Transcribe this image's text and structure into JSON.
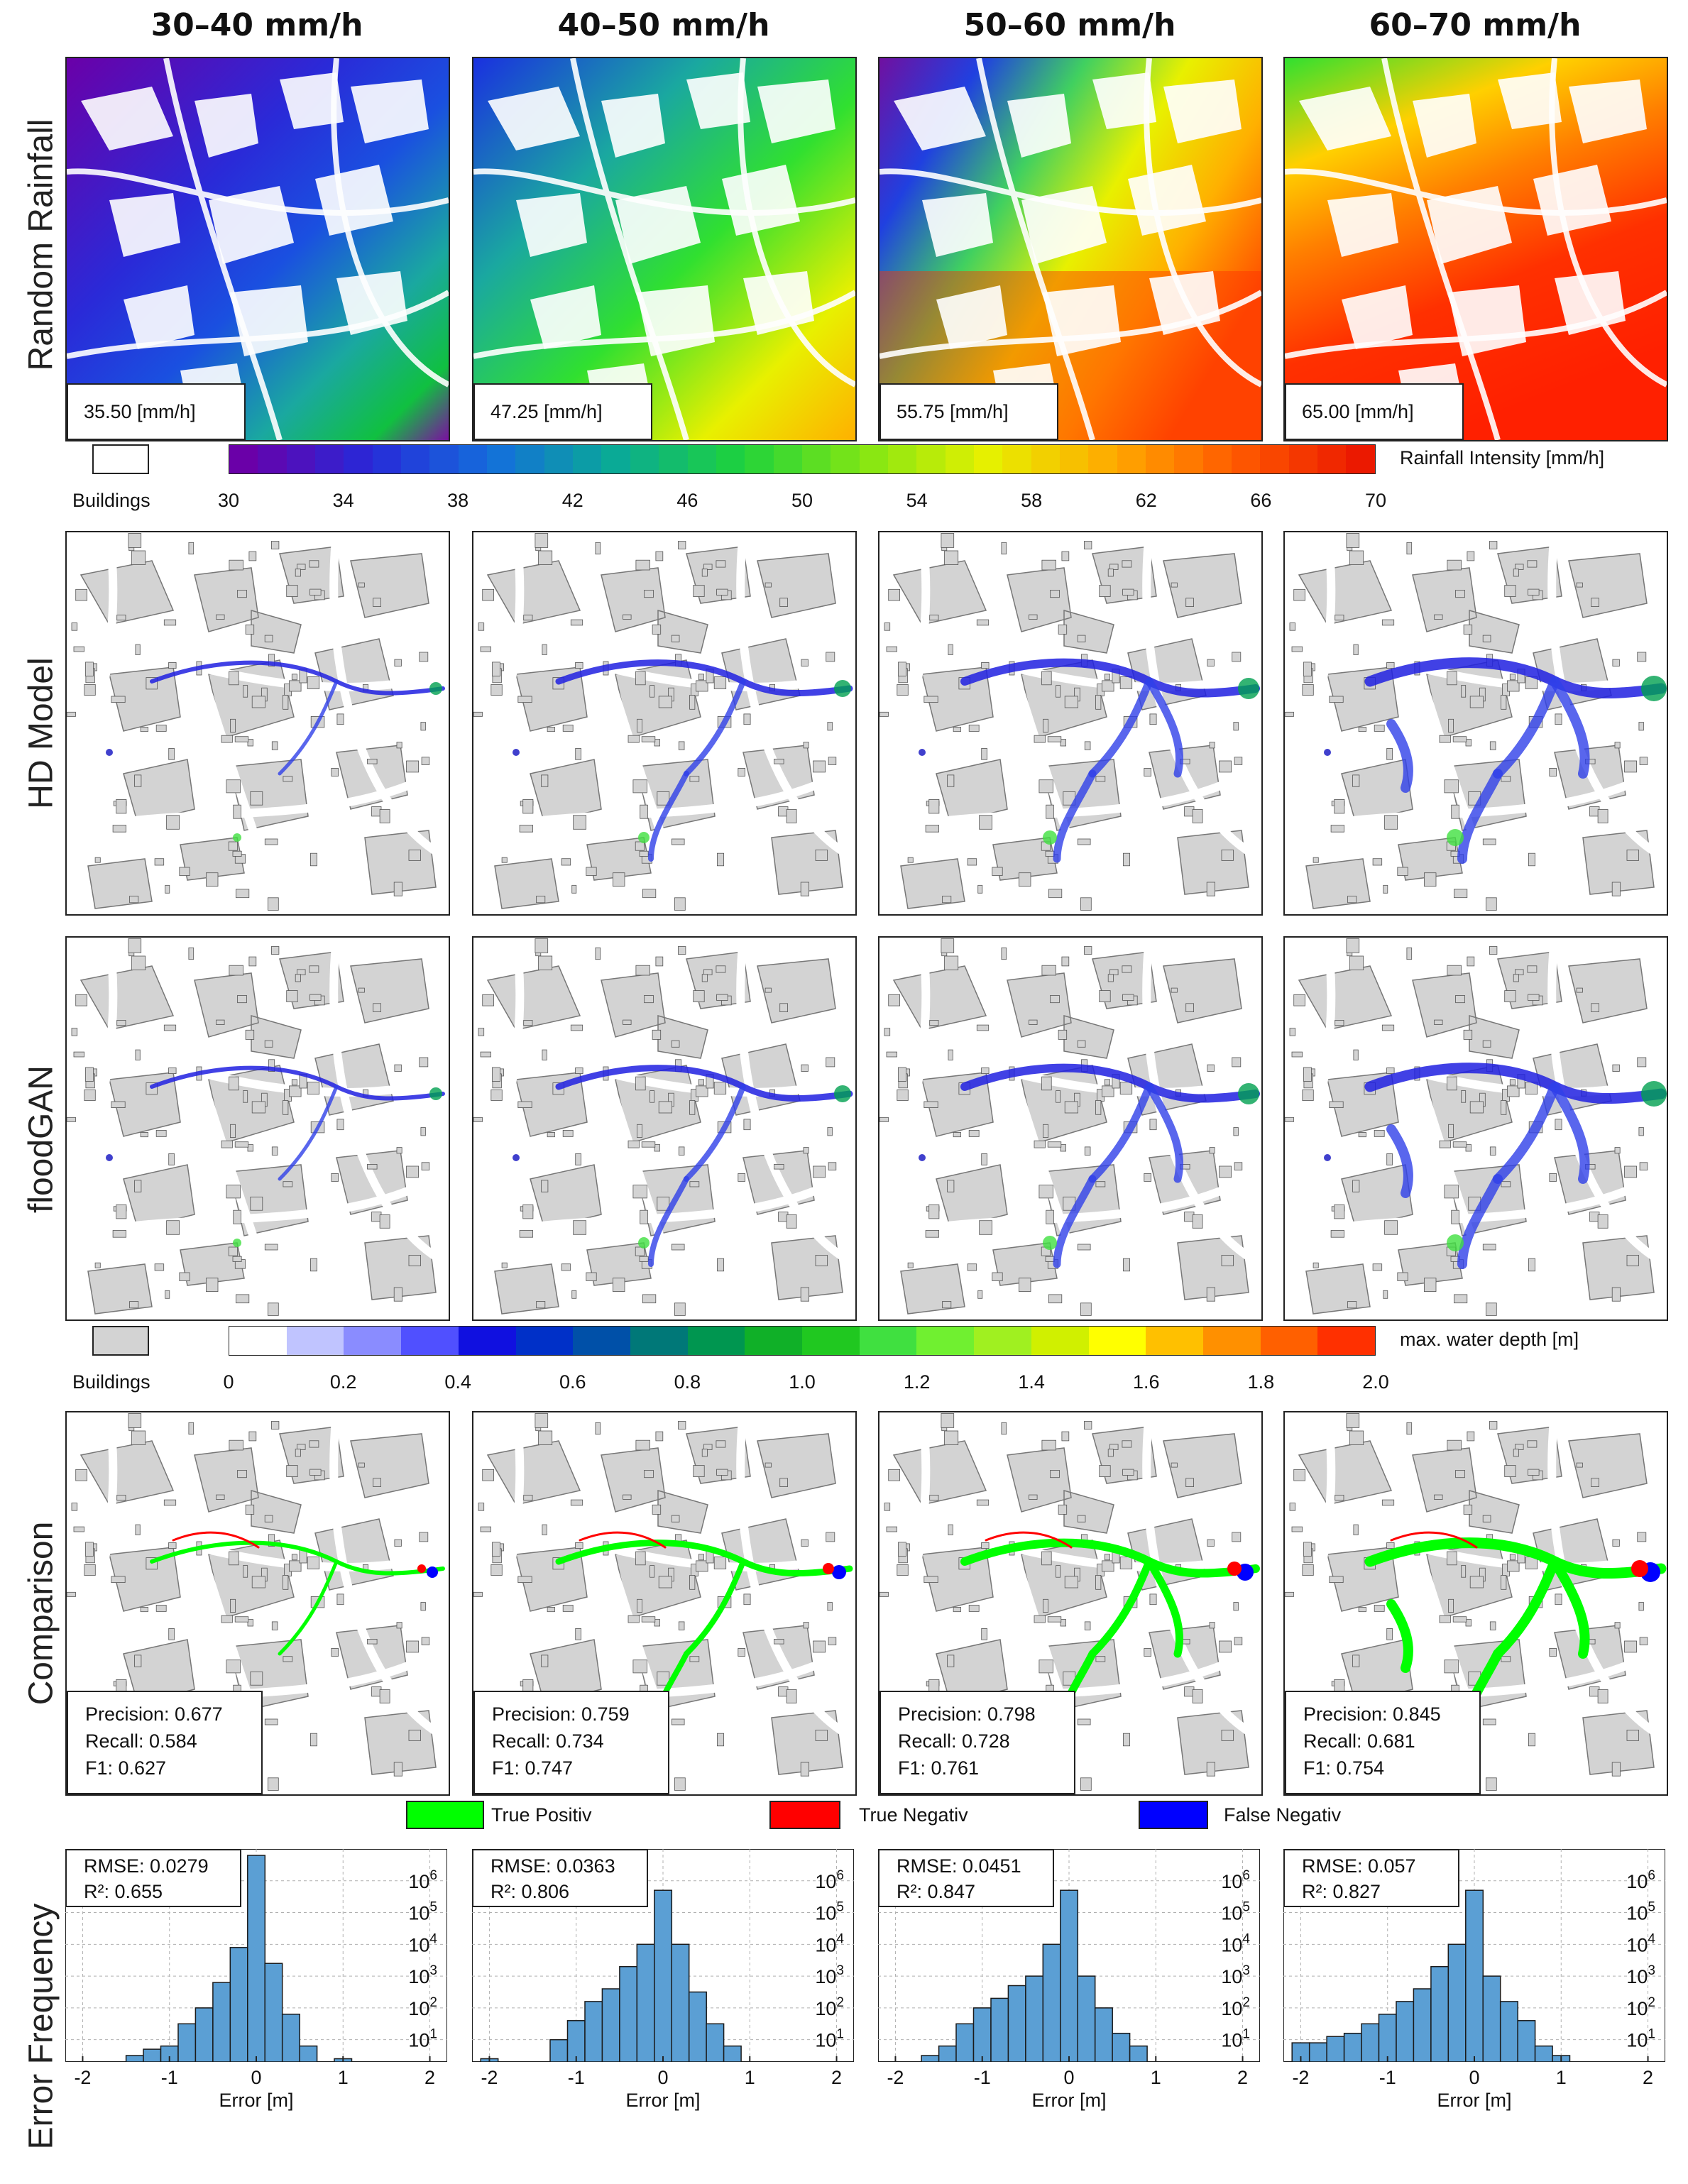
{
  "columns": [
    {
      "title": "30–40 mm/h",
      "rainfall_value": "35.50 [mm/h]",
      "precision": "Precision: 0.677",
      "recall": "Recall: 0.584",
      "f1": "F1: 0.627",
      "rmse": "RMSE: 0.0279",
      "r2": "R²: 0.655"
    },
    {
      "title": "40–50 mm/h",
      "rainfall_value": "47.25 [mm/h]",
      "precision": "Precision: 0.759",
      "recall": "Recall: 0.734",
      "f1": "F1: 0.747",
      "rmse": "RMSE: 0.0363",
      "r2": "R²: 0.806"
    },
    {
      "title": "50–60 mm/h",
      "rainfall_value": "55.75 [mm/h]",
      "precision": "Precision: 0.798",
      "recall": "Recall: 0.728",
      "f1": "F1: 0.761",
      "rmse": "RMSE: 0.0451",
      "r2": "R²: 0.847"
    },
    {
      "title": "60–70 mm/h",
      "rainfall_value": "65.00 [mm/h]",
      "precision": "Precision: 0.845",
      "recall": "Recall: 0.681",
      "f1": "F1: 0.754",
      "rmse": "RMSE: 0.057",
      "r2": "R²: 0.827"
    }
  ],
  "row_labels": [
    "Random Rainfall",
    "HD Model",
    "floodGAN",
    "Comparison",
    "Error Frequency"
  ],
  "rain_legend": {
    "buildings_label": "Buildings",
    "title": "Rainfall Intensity [mm/h]",
    "ticks": [
      "30",
      "34",
      "38",
      "42",
      "46",
      "50",
      "54",
      "58",
      "62",
      "66",
      "70"
    ]
  },
  "depth_legend": {
    "buildings_label": "Buildings",
    "title": "max. water depth [m]",
    "ticks": [
      "0",
      "0.2",
      "0.4",
      "0.6",
      "0.8",
      "1.0",
      "1.2",
      "1.4",
      "1.6",
      "1.8",
      "2.0"
    ],
    "colors": [
      "#ffffff",
      "#c0c4ff",
      "#8a8cff",
      "#5050ff",
      "#1010e0",
      "#0030c8",
      "#0050a8",
      "#007878",
      "#009650",
      "#10b028",
      "#20c820",
      "#40e040",
      "#70f030",
      "#a0f020",
      "#d0f000",
      "#ffff00",
      "#ffc000",
      "#ff9000",
      "#ff6000",
      "#ff3000"
    ]
  },
  "comparison_legend": [
    {
      "label": "True Positiv",
      "color": "#00ff00"
    },
    {
      "label": "True Negativ",
      "color": "#ff0000"
    },
    {
      "label": "False Negativ",
      "color": "#0000ff"
    }
  ],
  "colors": {
    "building_gray": "#d3d3d3",
    "hist_bar": "#5b9fd4",
    "hist_edge": "#1a1a1a"
  },
  "chart_data": [
    {
      "type": "bar",
      "title": "Error Frequency 30–40 mm/h",
      "xlabel": "Error [m]",
      "ylabel": "Error Frequency",
      "yscale": "log",
      "xlim": [
        -2.2,
        2.2
      ],
      "ylim_exp": [
        0.3,
        7
      ],
      "x_ticks": [
        "-2",
        "-1",
        "0",
        "1",
        "2"
      ],
      "y_ticks": [
        "10^1",
        "10^2",
        "10^3",
        "10^4",
        "10^5",
        "10^6"
      ],
      "bin_width": 0.2,
      "bin_centers": [
        -1.4,
        -1.2,
        -1.0,
        -0.8,
        -0.6,
        -0.4,
        -0.2,
        0.0,
        0.2,
        0.4,
        0.6,
        1.0
      ],
      "log10_counts": [
        0.5,
        0.7,
        0.8,
        1.5,
        2.0,
        2.8,
        3.9,
        6.8,
        3.4,
        1.8,
        0.8,
        0.4
      ]
    },
    {
      "type": "bar",
      "title": "Error Frequency 40–50 mm/h",
      "xlabel": "Error [m]",
      "ylabel": "Error Frequency",
      "yscale": "log",
      "xlim": [
        -2.2,
        2.2
      ],
      "ylim_exp": [
        0.3,
        7
      ],
      "x_ticks": [
        "-2",
        "-1",
        "0",
        "1",
        "2"
      ],
      "y_ticks": [
        "10^1",
        "10^2",
        "10^3",
        "10^4",
        "10^5",
        "10^6"
      ],
      "bin_width": 0.2,
      "bin_centers": [
        -2.0,
        -1.2,
        -1.0,
        -0.8,
        -0.6,
        -0.4,
        -0.2,
        0.0,
        0.2,
        0.4,
        0.6,
        0.8
      ],
      "log10_counts": [
        0.4,
        1.0,
        1.6,
        2.2,
        2.6,
        3.3,
        4.0,
        5.7,
        4.0,
        2.5,
        1.5,
        0.8
      ]
    },
    {
      "type": "bar",
      "title": "Error Frequency 50–60 mm/h",
      "xlabel": "Error [m]",
      "ylabel": "Error Frequency",
      "yscale": "log",
      "xlim": [
        -2.2,
        2.2
      ],
      "ylim_exp": [
        0.3,
        7
      ],
      "x_ticks": [
        "-2",
        "-1",
        "0",
        "1",
        "2"
      ],
      "y_ticks": [
        "10^1",
        "10^2",
        "10^3",
        "10^4",
        "10^5",
        "10^6"
      ],
      "bin_width": 0.2,
      "bin_centers": [
        -1.6,
        -1.4,
        -1.2,
        -1.0,
        -0.8,
        -0.6,
        -0.4,
        -0.2,
        0.0,
        0.2,
        0.4,
        0.6,
        0.8
      ],
      "log10_counts": [
        0.5,
        0.8,
        1.5,
        2.0,
        2.3,
        2.7,
        3.0,
        4.0,
        5.7,
        3.0,
        2.0,
        1.2,
        0.8
      ]
    },
    {
      "type": "bar",
      "title": "Error Frequency 60–70 mm/h",
      "xlabel": "Error [m]",
      "ylabel": "Error Frequency",
      "yscale": "log",
      "xlim": [
        -2.2,
        2.2
      ],
      "ylim_exp": [
        0.3,
        7
      ],
      "x_ticks": [
        "-2",
        "-1",
        "0",
        "1",
        "2"
      ],
      "y_ticks": [
        "10^1",
        "10^2",
        "10^3",
        "10^4",
        "10^5",
        "10^6"
      ],
      "bin_width": 0.2,
      "bin_centers": [
        -2.0,
        -1.8,
        -1.6,
        -1.4,
        -1.2,
        -1.0,
        -0.8,
        -0.6,
        -0.4,
        -0.2,
        0.0,
        0.2,
        0.4,
        0.6,
        0.8,
        1.0
      ],
      "log10_counts": [
        0.9,
        0.9,
        1.1,
        1.2,
        1.5,
        1.8,
        2.2,
        2.6,
        3.3,
        4.0,
        5.7,
        3.0,
        2.2,
        1.6,
        0.8,
        0.5
      ]
    }
  ],
  "x_axis_label": "Error [m]"
}
